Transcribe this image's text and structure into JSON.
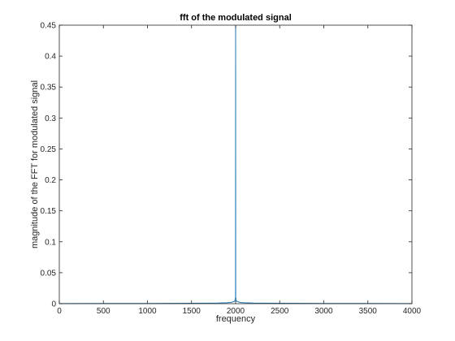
{
  "chart_data": {
    "type": "line",
    "title": "fft of the modulated signal",
    "xlabel": "frequency",
    "ylabel": "magnitude of the FFT for modulated signal",
    "xlim": [
      0,
      4000
    ],
    "ylim": [
      0,
      0.45
    ],
    "xticks": [
      0,
      500,
      1000,
      1500,
      2000,
      2500,
      3000,
      3500,
      4000
    ],
    "yticks": [
      0,
      0.05,
      0.1,
      0.15,
      0.2,
      0.25,
      0.3,
      0.35,
      0.4,
      0.45
    ],
    "grid": false,
    "legend": "none",
    "line_color": "#1f77b4",
    "series": [
      {
        "x": [
          0,
          500,
          1000,
          1500,
          1800,
          1900,
          1950,
          1990,
          1999,
          2000,
          2001,
          2010,
          2050,
          2100,
          2200,
          2500,
          3000,
          3500,
          4000
        ],
        "y": [
          0.0002,
          0.0003,
          0.0004,
          0.0006,
          0.001,
          0.0015,
          0.002,
          0.004,
          0.01,
          0.45,
          0.01,
          0.004,
          0.002,
          0.0015,
          0.001,
          0.0006,
          0.0004,
          0.0003,
          0.0002
        ]
      }
    ]
  }
}
